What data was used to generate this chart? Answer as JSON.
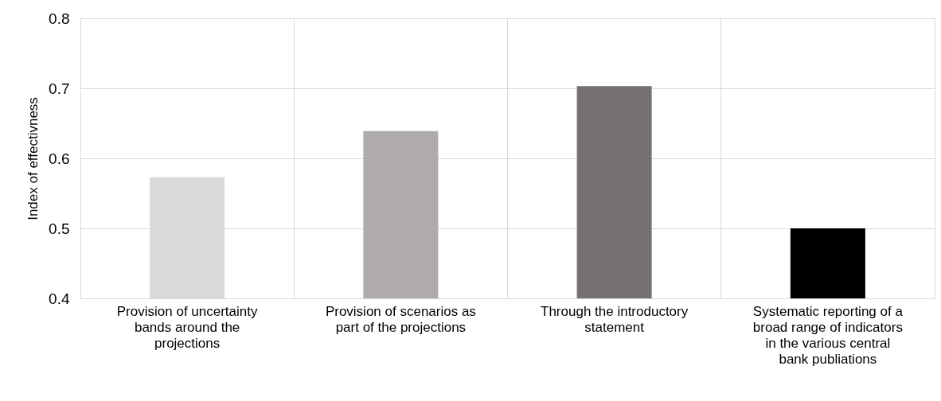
{
  "chart_data": {
    "type": "bar",
    "ylabel": "Index of effectivness",
    "categories": [
      "Provision of uncertainty bands around the projections",
      "Provision of scenarios as part of the projections",
      "Through the introductory statement",
      "Systematic reporting of a broad range of indicators in the various central bank publiations"
    ],
    "values": [
      0.573,
      0.639,
      0.703,
      0.5
    ],
    "colors": [
      "#d9d9d9",
      "#afabab",
      "#767171",
      "#000000"
    ],
    "ylim": [
      0.4,
      0.8
    ],
    "yticks": [
      0.4,
      0.5,
      0.6,
      0.7,
      0.8
    ],
    "grid": true
  }
}
